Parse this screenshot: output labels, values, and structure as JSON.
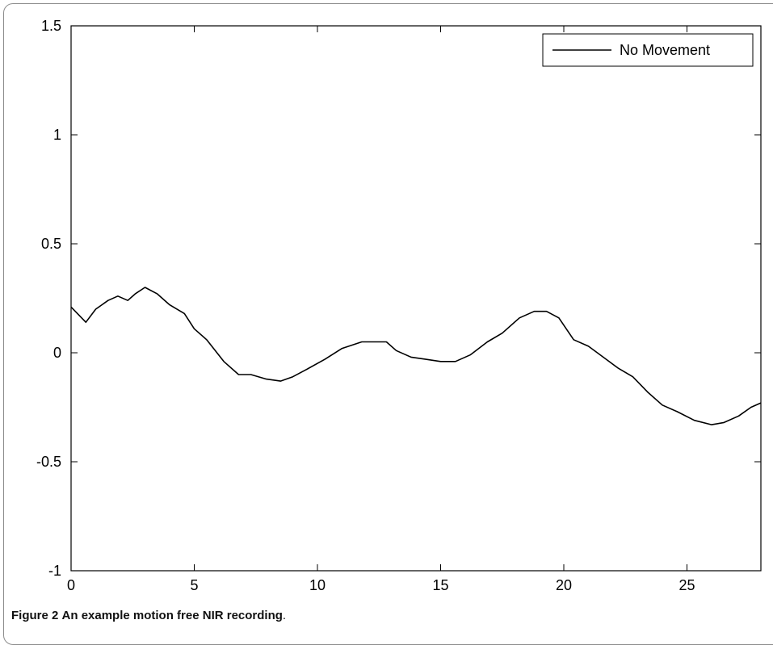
{
  "caption": {
    "label": "Figure 2",
    "text": "An example motion free NIR recording",
    "period": "."
  },
  "colors": {
    "line": "#000000",
    "axes": "#000000",
    "frame": "#8c8c8c"
  },
  "chart_data": {
    "type": "line",
    "title": "",
    "xlabel": "",
    "ylabel": "",
    "xlim": [
      0,
      28
    ],
    "ylim": [
      -1,
      1.5
    ],
    "xticks": [
      0,
      5,
      10,
      15,
      20,
      25
    ],
    "yticks": [
      -1,
      -0.5,
      0,
      0.5,
      1,
      1.5
    ],
    "xtick_labels": [
      "0",
      "5",
      "10",
      "15",
      "20",
      "25"
    ],
    "ytick_labels": [
      "-1",
      "-0.5",
      "0",
      "0.5",
      "1",
      "1.5"
    ],
    "grid": false,
    "legend": {
      "placement": "top-right",
      "entries": [
        "No Movement"
      ]
    },
    "series": [
      {
        "name": "No Movement",
        "x": [
          0,
          0.6,
          1.0,
          1.5,
          1.9,
          2.3,
          2.6,
          3.0,
          3.5,
          4.0,
          4.6,
          5.0,
          5.5,
          6.2,
          6.8,
          7.3,
          7.9,
          8.5,
          9.0,
          9.5,
          10.3,
          11.0,
          11.8,
          12.3,
          12.8,
          13.2,
          13.8,
          14.4,
          15.0,
          15.6,
          16.2,
          16.9,
          17.5,
          18.2,
          18.8,
          19.3,
          19.8,
          20.4,
          21.0,
          21.6,
          22.2,
          22.8,
          23.4,
          24.0,
          24.6,
          25.3,
          26.0,
          26.5,
          27.1,
          27.6,
          28.0
        ],
        "y": [
          0.21,
          0.14,
          0.2,
          0.24,
          0.26,
          0.24,
          0.27,
          0.3,
          0.27,
          0.22,
          0.18,
          0.11,
          0.06,
          -0.04,
          -0.1,
          -0.1,
          -0.12,
          -0.13,
          -0.11,
          -0.08,
          -0.03,
          0.02,
          0.05,
          0.05,
          0.05,
          0.01,
          -0.02,
          -0.03,
          -0.04,
          -0.04,
          -0.01,
          0.05,
          0.09,
          0.16,
          0.19,
          0.19,
          0.16,
          0.06,
          0.03,
          -0.02,
          -0.07,
          -0.11,
          -0.18,
          -0.24,
          -0.27,
          -0.31,
          -0.33,
          -0.32,
          -0.29,
          -0.25,
          -0.23
        ]
      }
    ]
  }
}
